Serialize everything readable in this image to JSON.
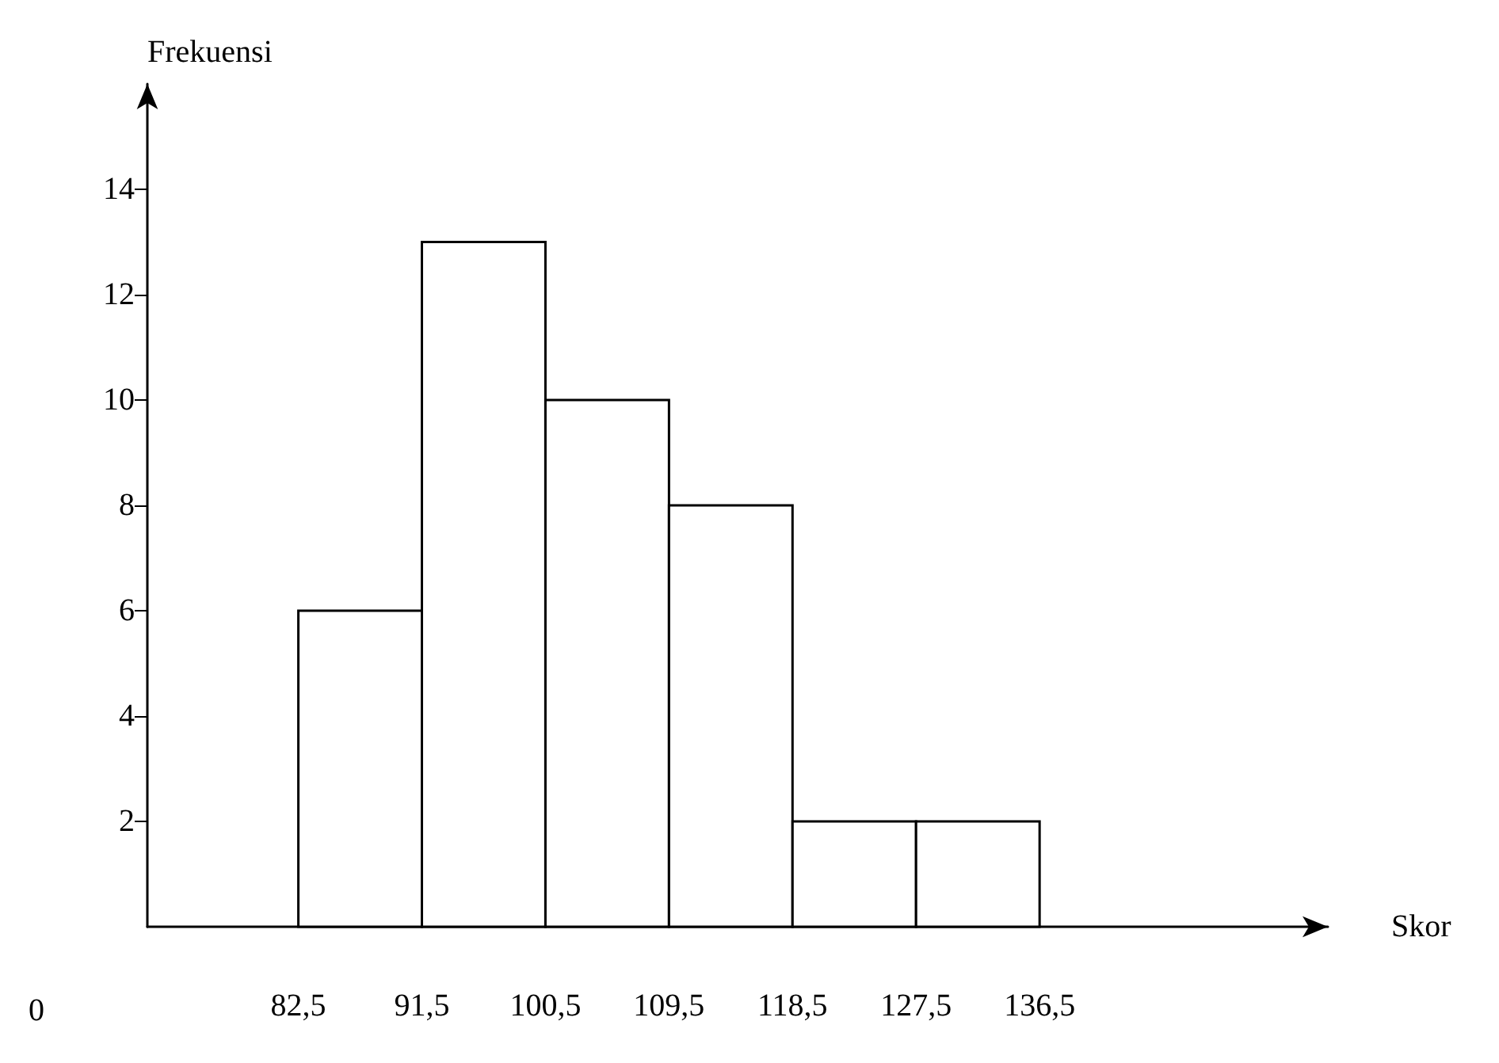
{
  "chart_data": {
    "type": "histogram",
    "xlabel": "Skor",
    "ylabel": "Frekuensi",
    "bins": [
      82.5,
      91.5,
      100.5,
      109.5,
      118.5,
      127.5,
      136.5
    ],
    "values": [
      6,
      13,
      10,
      8,
      2,
      2
    ],
    "color": "#000000",
    "xlim": [
      71.5,
      157.5
    ],
    "xticks": [
      {
        "value": 82.5,
        "label": "82,5"
      },
      {
        "value": 91.5,
        "label": "91,5"
      },
      {
        "value": 100.5,
        "label": "100,5"
      },
      {
        "value": 109.5,
        "label": "109,5"
      },
      {
        "value": 118.5,
        "label": "118,5"
      },
      {
        "value": 127.5,
        "label": "127,5"
      },
      {
        "value": 136.5,
        "label": "136,5"
      }
    ],
    "ylim": [
      0,
      16
    ],
    "yticks": [
      2,
      4,
      6,
      8,
      10,
      12,
      14
    ],
    "annotations": [
      "0"
    ],
    "grid": false
  }
}
